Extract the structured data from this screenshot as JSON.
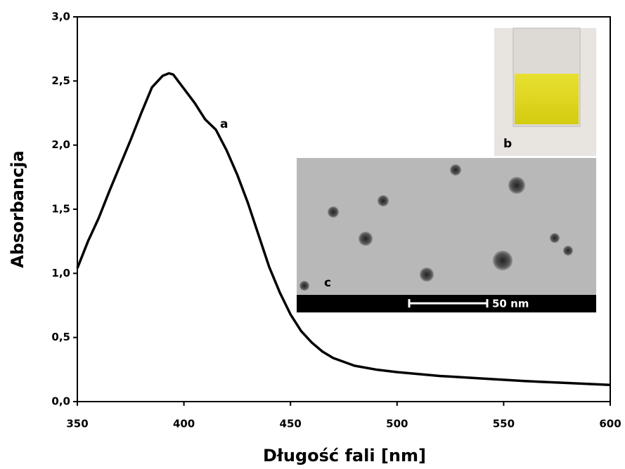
{
  "chart_data": {
    "type": "line",
    "xlabel": "Długość fali [nm]",
    "ylabel": "Absorbancja",
    "x": [
      350,
      355,
      360,
      365,
      370,
      375,
      380,
      385,
      390,
      393,
      395,
      400,
      405,
      410,
      415,
      420,
      425,
      430,
      435,
      440,
      445,
      450,
      455,
      460,
      465,
      470,
      480,
      490,
      500,
      520,
      540,
      560,
      580,
      600
    ],
    "values": [
      1.04,
      1.25,
      1.43,
      1.64,
      1.84,
      2.04,
      2.25,
      2.45,
      2.54,
      2.56,
      2.55,
      2.44,
      2.33,
      2.2,
      2.12,
      1.96,
      1.77,
      1.55,
      1.3,
      1.05,
      0.85,
      0.68,
      0.55,
      0.46,
      0.39,
      0.34,
      0.28,
      0.25,
      0.23,
      0.2,
      0.18,
      0.16,
      0.145,
      0.13
    ],
    "color": "#000000",
    "xlim": [
      350,
      600
    ],
    "xticks": [
      350,
      400,
      450,
      500,
      550,
      600
    ],
    "ylim": [
      0,
      3
    ],
    "yticks": [
      {
        "value": 0,
        "label": "0,0"
      },
      {
        "value": 0.5,
        "label": "0,5"
      },
      {
        "value": 1,
        "label": "1,0"
      },
      {
        "value": 1.5,
        "label": "1,5"
      },
      {
        "value": 2,
        "label": "2,0"
      },
      {
        "value": 2.5,
        "label": "2,5"
      },
      {
        "value": 3,
        "label": "3,0"
      }
    ],
    "annotations": [
      "a",
      "b",
      "c",
      "50 nm"
    ]
  }
}
